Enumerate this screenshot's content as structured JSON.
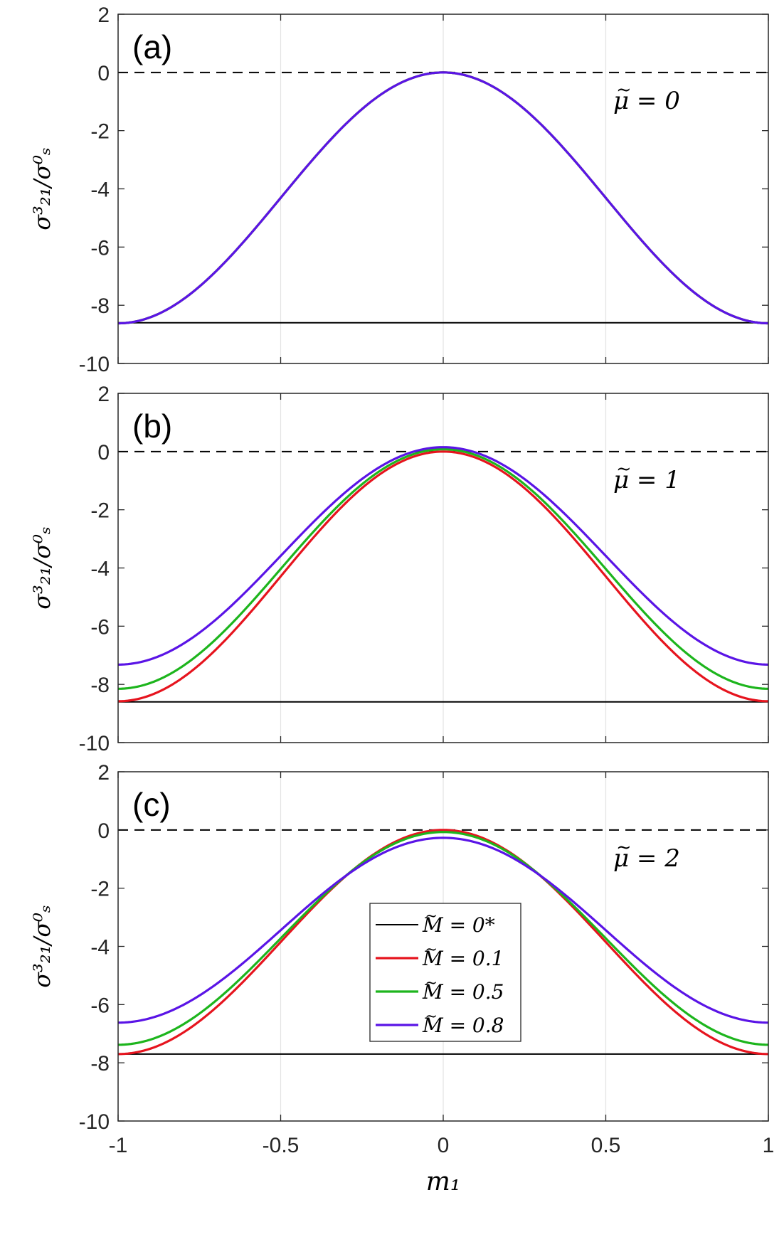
{
  "chart_data": {
    "type": "line",
    "layout": "3 vertically stacked panels sharing x-axis",
    "xlabel": "m₁",
    "ylabel": "σ³₂₁/σ⁰ₛ",
    "xlim": [
      -1,
      1
    ],
    "ylim": [
      -10,
      2
    ],
    "xticks": [
      -1,
      -0.5,
      0,
      0.5,
      1
    ],
    "xtick_labels": [
      "-1",
      "-0.5",
      "0",
      "0.5",
      "1"
    ],
    "yticks": [
      2,
      0,
      -2,
      -4,
      -6,
      -8,
      -10
    ],
    "ytick_labels": [
      "2",
      "0",
      "-2",
      "-4",
      "-6",
      "-8",
      "-10"
    ],
    "grid": "vertical lines at x ticks",
    "reference_line": {
      "y": 0,
      "style": "dashed",
      "color": "#000000"
    },
    "colors": {
      "M0": "#000000",
      "M01": "#e6141e",
      "M05": "#1db51d",
      "M08": "#5a14e6"
    },
    "legend": {
      "placement": "panel (c), lower center",
      "entries": [
        {
          "key": "M0",
          "label": "M̃ = 0*"
        },
        {
          "key": "M01",
          "label": "M̃ = 0.1"
        },
        {
          "key": "M05",
          "label": "M̃ = 0.5"
        },
        {
          "key": "M08",
          "label": "M̃ = 0.8"
        }
      ]
    },
    "curve_shape": "y = baseline + peak_amplitude * (1 + cos(pi*x)) / 2 ; baseline is value at x=±1, peak is value at x=0",
    "panels": [
      {
        "label": "(a)",
        "annotation": "μ̃ = 0",
        "series": [
          {
            "name": "M̃ = 0*",
            "key": "M0",
            "kind": "constant",
            "value": -8.6
          },
          {
            "name": "M̃ = 0.1",
            "key": "M01",
            "kind": "curve",
            "value_at_edges": -8.62,
            "value_at_zero": 0.0
          },
          {
            "name": "M̃ = 0.5",
            "key": "M05",
            "kind": "curve",
            "value_at_edges": -8.62,
            "value_at_zero": 0.0
          },
          {
            "name": "M̃ = 0.8",
            "key": "M08",
            "kind": "curve",
            "value_at_edges": -8.62,
            "value_at_zero": 0.0
          }
        ]
      },
      {
        "label": "(b)",
        "annotation": "μ̃ = 1",
        "series": [
          {
            "name": "M̃ = 0*",
            "key": "M0",
            "kind": "constant",
            "value": -8.6
          },
          {
            "name": "M̃ = 0.1",
            "key": "M01",
            "kind": "curve",
            "value_at_edges": -8.58,
            "value_at_zero": 0.0
          },
          {
            "name": "M̃ = 0.5",
            "key": "M05",
            "kind": "curve",
            "value_at_edges": -8.15,
            "value_at_zero": 0.08
          },
          {
            "name": "M̃ = 0.8",
            "key": "M08",
            "kind": "curve",
            "value_at_edges": -7.32,
            "value_at_zero": 0.15
          }
        ]
      },
      {
        "label": "(c)",
        "annotation": "μ̃ = 2",
        "series": [
          {
            "name": "M̃ = 0*",
            "key": "M0",
            "kind": "constant",
            "value": -7.7
          },
          {
            "name": "M̃ = 0.1",
            "key": "M01",
            "kind": "curve",
            "value_at_edges": -7.7,
            "value_at_zero": 0.0
          },
          {
            "name": "M̃ = 0.5",
            "key": "M05",
            "kind": "curve",
            "value_at_edges": -7.38,
            "value_at_zero": -0.07
          },
          {
            "name": "M̃ = 0.8",
            "key": "M08",
            "kind": "curve",
            "value_at_edges": -6.62,
            "value_at_zero": -0.27
          }
        ]
      }
    ]
  }
}
